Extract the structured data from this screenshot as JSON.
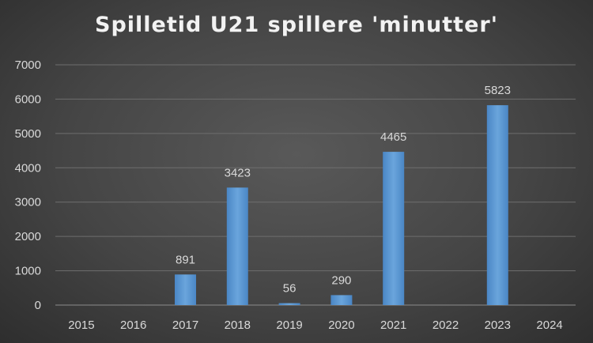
{
  "chart_data": {
    "type": "bar",
    "title": "Spilletid U21 spillere 'minutter'",
    "xlabel": "",
    "ylabel": "",
    "categories": [
      "2015",
      "2016",
      "2017",
      "2018",
      "2019",
      "2020",
      "2021",
      "2022",
      "2023",
      "2024"
    ],
    "values": [
      0,
      0,
      891,
      3423,
      56,
      290,
      4465,
      0,
      5823,
      0
    ],
    "data_labels": [
      "",
      "",
      "891",
      "3423",
      "56",
      "290",
      "4465",
      "",
      "5823",
      ""
    ],
    "ylim": [
      0,
      7000
    ],
    "yticks": [
      "0",
      "1000",
      "2000",
      "3000",
      "4000",
      "5000",
      "6000",
      "7000"
    ],
    "grid": true,
    "legend": "none",
    "colors": {
      "bar": "#5b9bd5",
      "background": "#404040",
      "text": "#d9d9d9"
    }
  }
}
